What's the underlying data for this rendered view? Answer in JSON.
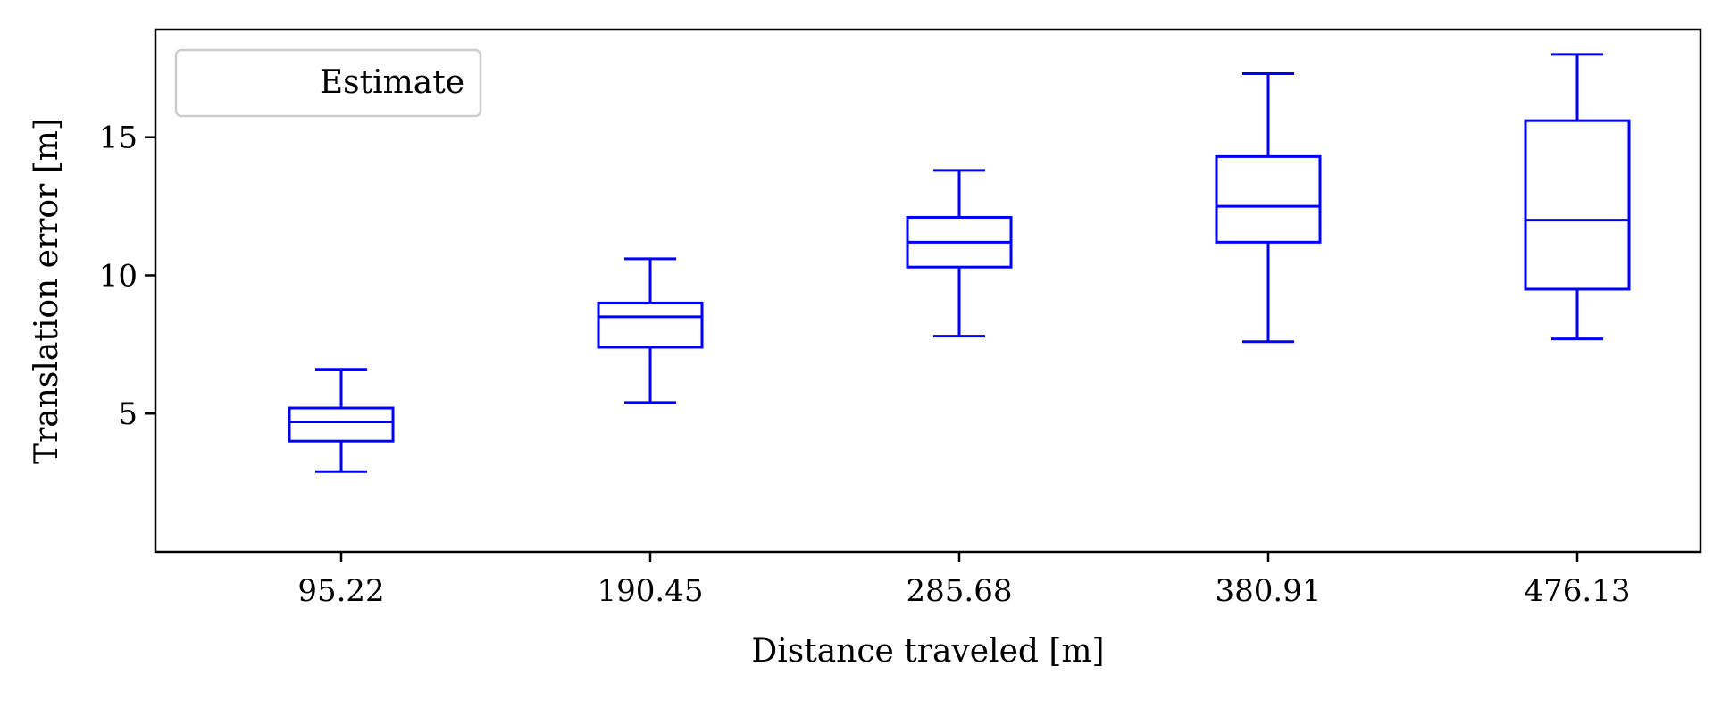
{
  "chart_data": {
    "type": "box",
    "xlabel": "Distance traveled [m]",
    "ylabel": "Translation error [m]",
    "ylim": [
      0,
      18.9
    ],
    "yticks": [
      5,
      10,
      15
    ],
    "categories": [
      "95.22",
      "190.45",
      "285.68",
      "380.91",
      "476.13"
    ],
    "series": [
      {
        "name": "Estimate",
        "color": "#0000ff",
        "boxes": [
          {
            "whisker_low": 2.9,
            "q1": 4.0,
            "median": 4.7,
            "q3": 5.2,
            "whisker_high": 6.6
          },
          {
            "whisker_low": 5.4,
            "q1": 7.4,
            "median": 8.5,
            "q3": 9.0,
            "whisker_high": 10.6
          },
          {
            "whisker_low": 7.8,
            "q1": 10.3,
            "median": 11.2,
            "q3": 12.1,
            "whisker_high": 13.8
          },
          {
            "whisker_low": 7.6,
            "q1": 11.2,
            "median": 12.5,
            "q3": 14.3,
            "whisker_high": 17.3
          },
          {
            "whisker_low": 7.7,
            "q1": 9.5,
            "median": 12.0,
            "q3": 15.6,
            "whisker_high": 18.0
          }
        ]
      }
    ],
    "grid": false,
    "legend": {
      "position": "top-left",
      "entries": [
        "Estimate"
      ]
    }
  }
}
